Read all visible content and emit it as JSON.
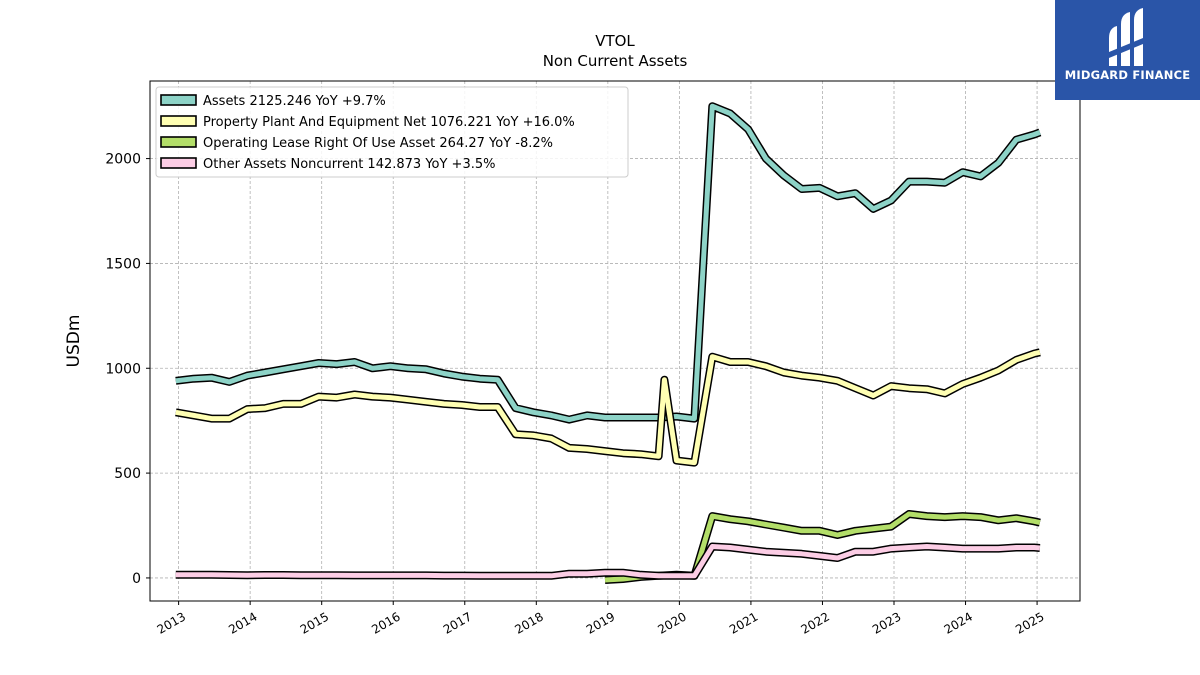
{
  "brand": {
    "name": "MIDGARD FINANCE",
    "bg": "#2a55a8"
  },
  "chart_data": {
    "type": "line",
    "title": "VTOL",
    "subtitle": "Non Current  Assets",
    "ylabel": "USDm",
    "xlabel": "",
    "xlim": [
      2012.6,
      2025.6
    ],
    "ylim": [
      -110,
      2370
    ],
    "xticks": [
      "2013",
      "2014",
      "2015",
      "2016",
      "2017",
      "2018",
      "2019",
      "2020",
      "2021",
      "2022",
      "2023",
      "2024",
      "2025"
    ],
    "yticks": [
      "0",
      "500",
      "1000",
      "1500",
      "2000"
    ],
    "grid": true,
    "legend_position": "top-left",
    "series": [
      {
        "name": "Assets  2125.246 YoY +9.7%",
        "color": "#8dd3c7",
        "x": [
          2012.96,
          2013.21,
          2013.46,
          2013.71,
          2013.96,
          2014.21,
          2014.46,
          2014.71,
          2014.96,
          2015.21,
          2015.46,
          2015.71,
          2015.96,
          2016.21,
          2016.46,
          2016.71,
          2016.96,
          2017.21,
          2017.46,
          2017.71,
          2017.96,
          2018.21,
          2018.46,
          2018.71,
          2018.96,
          2019.21,
          2019.46,
          2019.71,
          2019.96,
          2020.21,
          2020.46,
          2020.71,
          2020.96,
          2021.21,
          2021.46,
          2021.71,
          2021.96,
          2022.21,
          2022.46,
          2022.71,
          2022.96,
          2023.21,
          2023.46,
          2023.71,
          2023.96,
          2024.21,
          2024.46,
          2024.71,
          2024.96,
          2025.04
        ],
        "values": [
          940,
          950,
          955,
          935,
          965,
          980,
          995,
          1010,
          1025,
          1020,
          1030,
          1000,
          1010,
          1000,
          995,
          975,
          960,
          950,
          945,
          810,
          790,
          775,
          755,
          775,
          765,
          765,
          765,
          765,
          770,
          760,
          2250,
          2215,
          2140,
          2000,
          1920,
          1855,
          1860,
          1820,
          1835,
          1760,
          1800,
          1890,
          1890,
          1885,
          1935,
          1915,
          1980,
          2090,
          2115,
          2125
        ]
      },
      {
        "name": "Property Plant And Equipment Net  1076.221 YoY +16.0%",
        "color": "#ffffb3",
        "x": [
          2012.96,
          2013.21,
          2013.46,
          2013.71,
          2013.96,
          2014.21,
          2014.46,
          2014.71,
          2014.96,
          2015.21,
          2015.46,
          2015.71,
          2015.96,
          2016.21,
          2016.46,
          2016.71,
          2016.96,
          2017.21,
          2017.46,
          2017.71,
          2017.96,
          2018.21,
          2018.46,
          2018.71,
          2018.96,
          2019.21,
          2019.46,
          2019.71,
          2019.79,
          2019.96,
          2020.21,
          2020.46,
          2020.71,
          2020.96,
          2021.21,
          2021.46,
          2021.71,
          2021.96,
          2022.21,
          2022.46,
          2022.71,
          2022.96,
          2023.21,
          2023.46,
          2023.71,
          2023.96,
          2024.21,
          2024.46,
          2024.71,
          2024.96,
          2025.04
        ],
        "values": [
          790,
          775,
          760,
          760,
          805,
          810,
          830,
          830,
          865,
          860,
          875,
          865,
          860,
          850,
          840,
          830,
          825,
          815,
          815,
          685,
          680,
          665,
          620,
          615,
          605,
          595,
          590,
          580,
          945,
          560,
          550,
          1055,
          1030,
          1030,
          1010,
          980,
          965,
          955,
          940,
          905,
          870,
          915,
          905,
          900,
          880,
          925,
          955,
          990,
          1040,
          1070,
          1076
        ]
      },
      {
        "name": "Operating Lease Right Of Use Asset  264.27 YoY -8.2%",
        "color": "#b3de69",
        "x": [
          2018.96,
          2019.21,
          2019.46,
          2019.71,
          2019.96,
          2020.21,
          2020.46,
          2020.71,
          2020.96,
          2021.21,
          2021.46,
          2021.71,
          2021.96,
          2022.21,
          2022.46,
          2022.71,
          2022.96,
          2023.21,
          2023.46,
          2023.71,
          2023.96,
          2024.21,
          2024.46,
          2024.71,
          2024.96,
          2025.04
        ],
        "values": [
          -10,
          -5,
          5,
          10,
          15,
          10,
          295,
          280,
          270,
          255,
          240,
          225,
          225,
          205,
          225,
          235,
          245,
          305,
          295,
          290,
          295,
          290,
          275,
          285,
          270,
          264
        ]
      },
      {
        "name": "Other Assets Noncurrent  142.873 YoY +3.5%",
        "color": "#fccde5",
        "x": [
          2012.96,
          2013.21,
          2013.46,
          2013.71,
          2013.96,
          2014.21,
          2014.46,
          2014.71,
          2014.96,
          2015.21,
          2015.46,
          2015.71,
          2015.96,
          2016.21,
          2016.46,
          2016.71,
          2016.96,
          2017.21,
          2017.46,
          2017.71,
          2017.96,
          2018.21,
          2018.46,
          2018.71,
          2018.96,
          2019.21,
          2019.46,
          2019.71,
          2019.96,
          2020.21,
          2020.46,
          2020.71,
          2020.96,
          2021.21,
          2021.46,
          2021.71,
          2021.96,
          2022.21,
          2022.46,
          2022.71,
          2022.96,
          2023.21,
          2023.46,
          2023.71,
          2023.96,
          2024.21,
          2024.46,
          2024.71,
          2024.96,
          2025.04
        ],
        "values": [
          15,
          15,
          15,
          14,
          13,
          14,
          14,
          13,
          13,
          13,
          12,
          12,
          12,
          12,
          12,
          11,
          11,
          10,
          10,
          10,
          10,
          10,
          20,
          20,
          25,
          25,
          15,
          10,
          10,
          10,
          150,
          145,
          135,
          125,
          120,
          115,
          105,
          95,
          125,
          125,
          140,
          145,
          150,
          145,
          140,
          140,
          140,
          145,
          145,
          143
        ]
      }
    ]
  }
}
